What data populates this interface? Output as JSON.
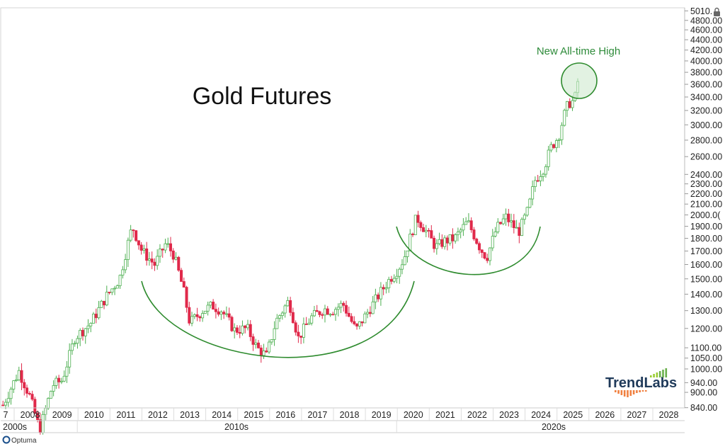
{
  "chart_data": {
    "type": "candlestick",
    "title": "Gold Futures",
    "annotation": "New All-time High",
    "y_scale": "log",
    "ylim": [
      840,
      5010
    ],
    "y_ticks": [
      "5010.",
      "4800.00",
      "4600.00",
      "4400.00",
      "4200.00",
      "4000.00",
      "3800.00",
      "3600.00",
      "3400.00",
      "3200.00",
      "3000.00",
      "2800.00",
      "2600.00",
      "2400.00",
      "2300.00",
      "2200.00",
      "2100.00",
      "2000.0(",
      "1900.00",
      "1800.00",
      "1700.00",
      "1600.00",
      "1500.00",
      "1400.00",
      "1300.00",
      "1200.00",
      "1100.00",
      "1050.00",
      "1000.00",
      "940.00",
      "900.00",
      "840.00"
    ],
    "x_ticks": [
      "7",
      "2008",
      "2009",
      "2010",
      "2011",
      "2012",
      "2013",
      "2014",
      "2015",
      "2016",
      "2017",
      "2018",
      "2019",
      "2020",
      "2021",
      "2022",
      "2023",
      "2024",
      "2025",
      "2026",
      "2027",
      "2028"
    ],
    "decades": [
      "2000s",
      "2010s",
      "2020s"
    ],
    "up_color": "#4caf50",
    "down_color": "#e0294a",
    "pattern_color": "#2e8b2e",
    "price_path": [
      [
        2007.65,
        850
      ],
      [
        2008.15,
        990
      ],
      [
        2008.5,
        880
      ],
      [
        2008.8,
        760
      ],
      [
        2009.2,
        930
      ],
      [
        2009.5,
        950
      ],
      [
        2009.9,
        1150
      ],
      [
        2010.4,
        1230
      ],
      [
        2010.9,
        1390
      ],
      [
        2011.3,
        1500
      ],
      [
        2011.6,
        1800
      ],
      [
        2011.7,
        1900
      ],
      [
        2012.0,
        1700
      ],
      [
        2012.4,
        1600
      ],
      [
        2012.75,
        1760
      ],
      [
        2013.0,
        1670
      ],
      [
        2013.3,
        1430
      ],
      [
        2013.5,
        1230
      ],
      [
        2013.9,
        1300
      ],
      [
        2014.2,
        1330
      ],
      [
        2014.5,
        1300
      ],
      [
        2014.9,
        1190
      ],
      [
        2015.3,
        1200
      ],
      [
        2015.6,
        1100
      ],
      [
        2015.9,
        1060
      ],
      [
        2016.2,
        1240
      ],
      [
        2016.6,
        1360
      ],
      [
        2016.9,
        1150
      ],
      [
        2017.3,
        1260
      ],
      [
        2017.7,
        1310
      ],
      [
        2017.95,
        1300
      ],
      [
        2018.3,
        1340
      ],
      [
        2018.7,
        1190
      ],
      [
        2019.1,
        1300
      ],
      [
        2019.5,
        1420
      ],
      [
        2019.8,
        1510
      ],
      [
        2020.0,
        1560
      ],
      [
        2020.2,
        1640
      ],
      [
        2020.6,
        1980
      ],
      [
        2020.9,
        1860
      ],
      [
        2021.2,
        1730
      ],
      [
        2021.5,
        1780
      ],
      [
        2021.8,
        1800
      ],
      [
        2022.2,
        1940
      ],
      [
        2022.6,
        1720
      ],
      [
        2022.8,
        1650
      ],
      [
        2023.1,
        1880
      ],
      [
        2023.4,
        1980
      ],
      [
        2023.8,
        1850
      ],
      [
        2024.1,
        2050
      ],
      [
        2024.3,
        2330
      ],
      [
        2024.6,
        2480
      ],
      [
        2024.8,
        2700
      ],
      [
        2025.05,
        2850
      ],
      [
        2025.2,
        3100
      ],
      [
        2025.35,
        3300
      ],
      [
        2025.55,
        3350
      ],
      [
        2025.7,
        3800
      ]
    ]
  },
  "footer": {
    "brand": "Optuma"
  },
  "logo": {
    "text": "TrendLabs"
  },
  "colors": {
    "accent_green": "#2e8b3a",
    "circle_fill": "#cfe9cf",
    "grid": "#dddddd"
  }
}
